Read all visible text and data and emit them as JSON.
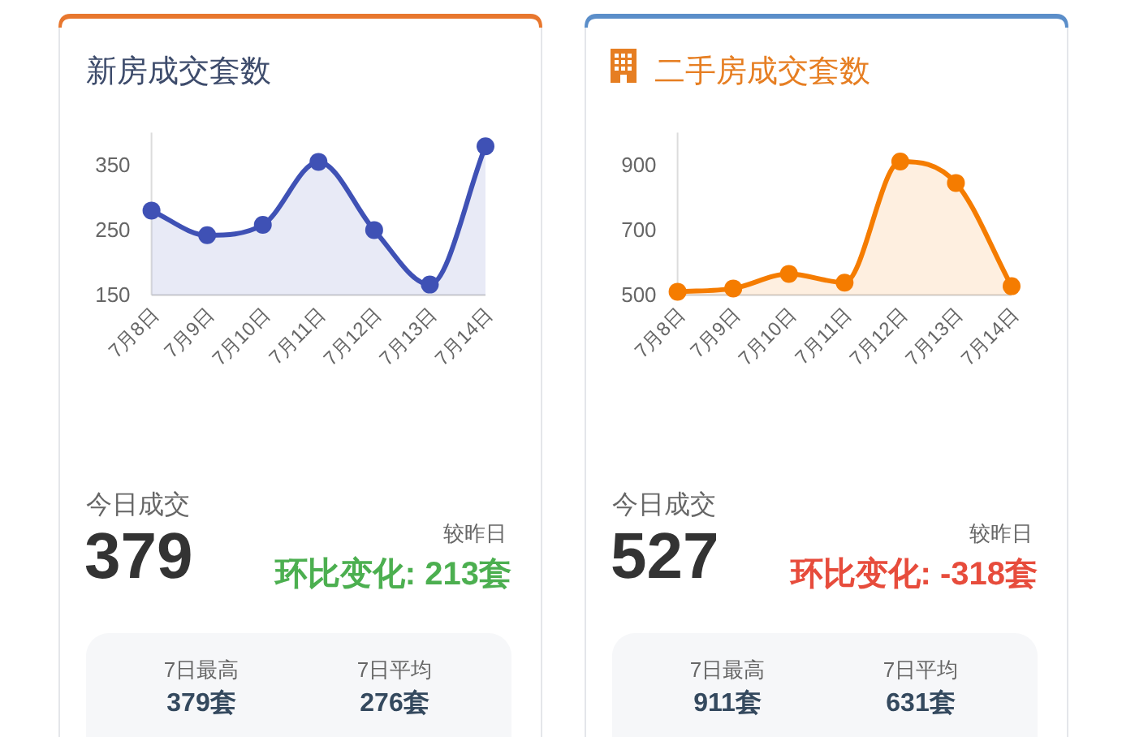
{
  "chart_data": [
    {
      "type": "area",
      "title": "新房成交套数",
      "categories": [
        "7月8日",
        "7月9日",
        "7月10日",
        "7月11日",
        "7月12日",
        "7月13日",
        "7月14日"
      ],
      "values": [
        280,
        242,
        258,
        355,
        250,
        166,
        379
      ],
      "color": "#3f51b5",
      "ylim": [
        150,
        400
      ],
      "yticks": [
        150,
        250,
        350
      ],
      "marker": "circle",
      "annotations": [
        "今日成交",
        "379",
        "较昨日",
        "环比变化: 213套",
        "7日最高",
        "379套",
        "7日平均",
        "276套"
      ]
    },
    {
      "type": "area",
      "title": "二手房成交套数",
      "categories": [
        "7月8日",
        "7月9日",
        "7月10日",
        "7月11日",
        "7月12日",
        "7月13日",
        "7月14日"
      ],
      "values": [
        510,
        520,
        565,
        538,
        911,
        845,
        527
      ],
      "color": "#f57c00",
      "ylim": [
        500,
        1000
      ],
      "yticks": [
        500,
        700,
        900
      ],
      "marker": "circle",
      "annotations": [
        "今日成交",
        "527",
        "较昨日",
        "环比变化: -318套",
        "7日最高",
        "911套",
        "7日平均",
        "631套"
      ]
    }
  ]
}
